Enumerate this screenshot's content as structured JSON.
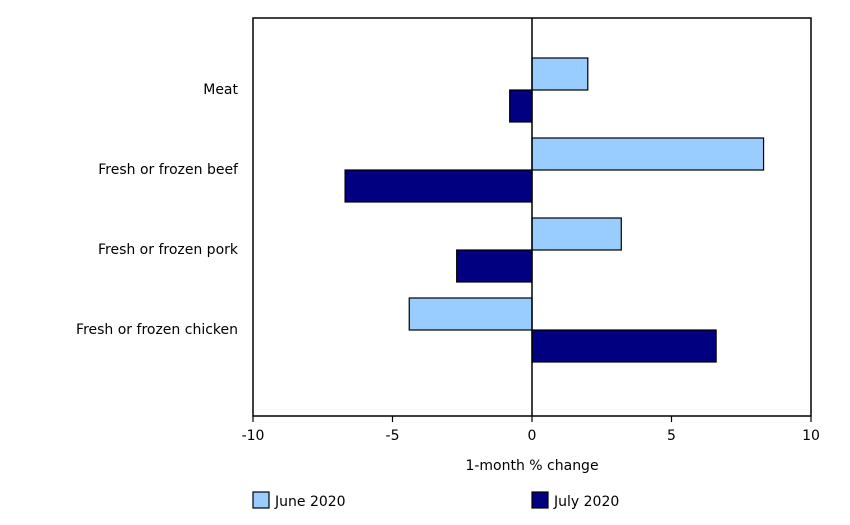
{
  "chart_data": {
    "type": "bar",
    "orientation": "horizontal",
    "categories": [
      "Meat",
      "Fresh or frozen beef",
      "Fresh or frozen pork",
      "Fresh or frozen chicken"
    ],
    "series": [
      {
        "name": "June 2020",
        "color": "#99ccff",
        "values": [
          2.0,
          8.3,
          3.2,
          -4.4
        ]
      },
      {
        "name": "July 2020",
        "color": "#000080",
        "values": [
          -0.8,
          -6.7,
          -2.7,
          6.6
        ]
      }
    ],
    "xlabel": "1-month % change",
    "ylabel": "",
    "xlim": [
      -10,
      10
    ],
    "xticks": [
      "-10",
      "-5",
      "0",
      "5",
      "10"
    ],
    "grid": false,
    "legend_position": "bottom"
  }
}
